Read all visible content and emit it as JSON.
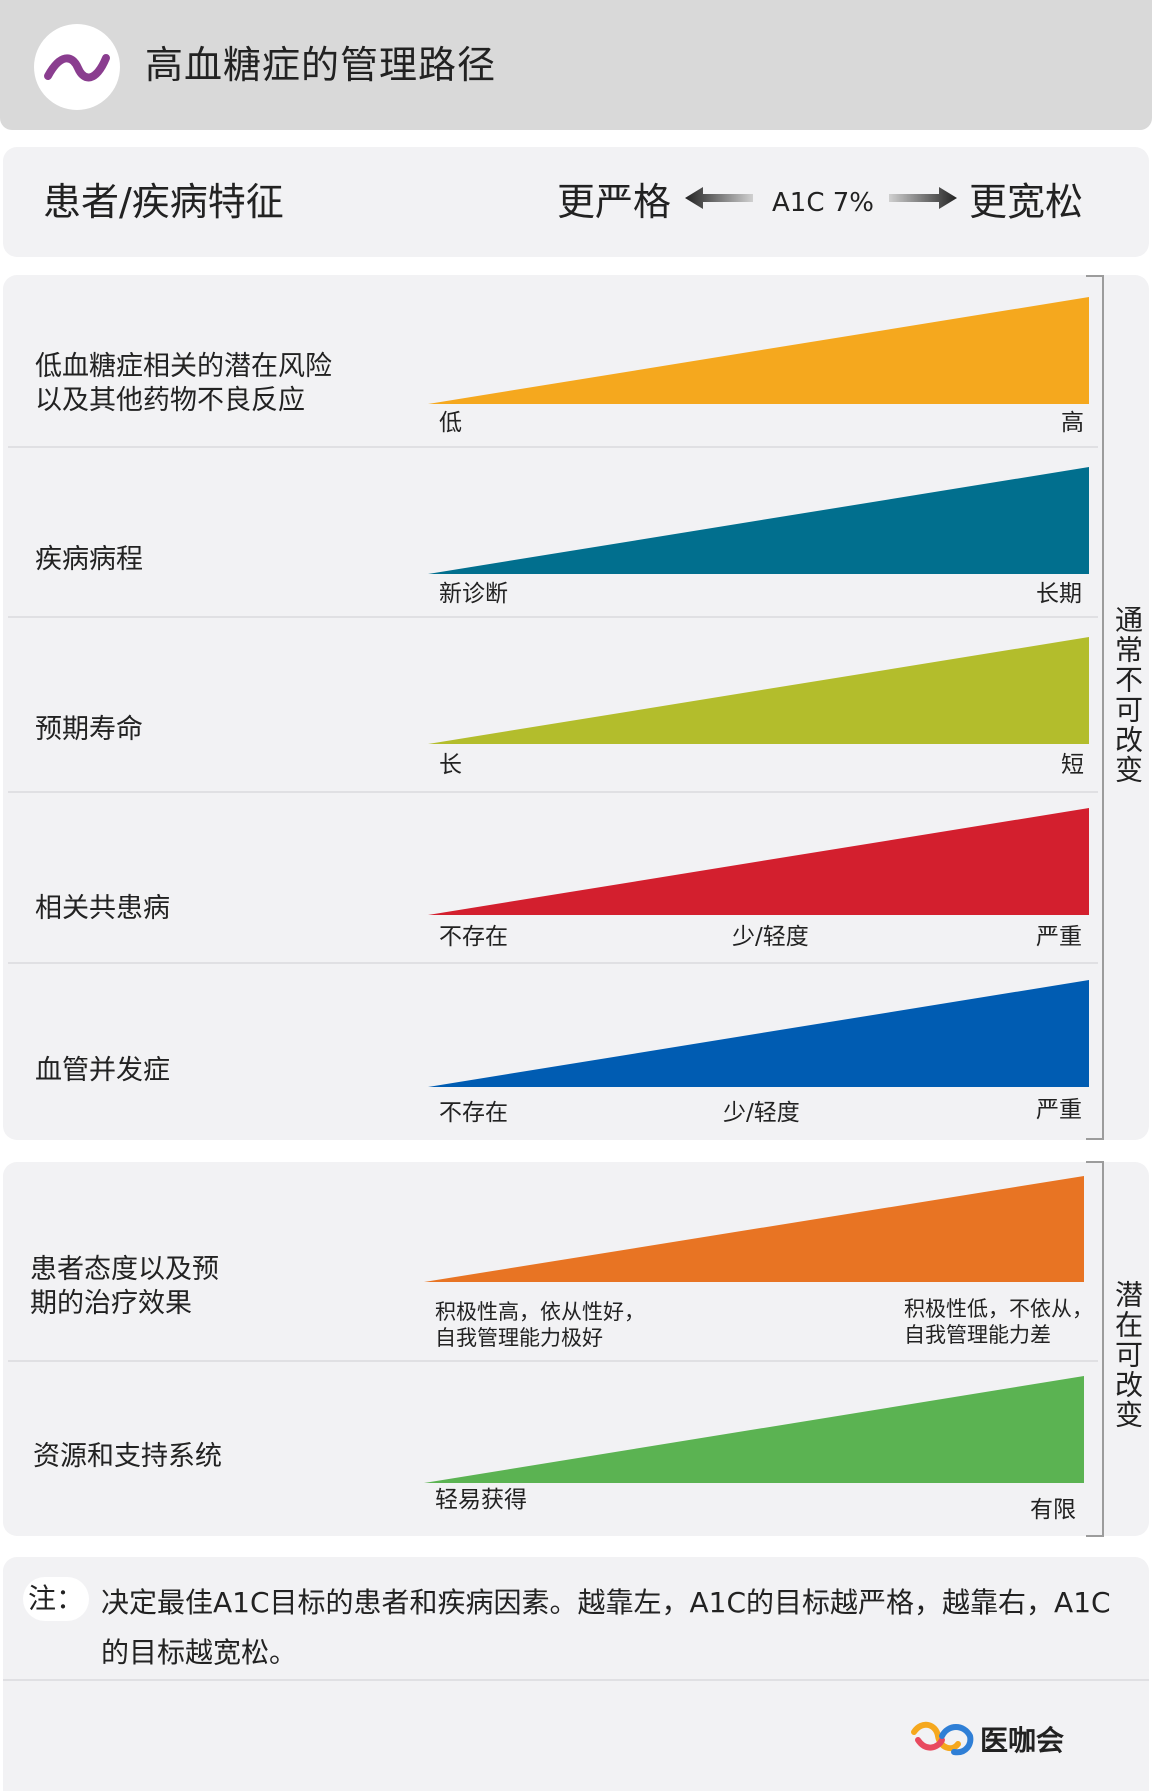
{
  "header": {
    "title": "高血糖症的管理路径",
    "logo_icon": "wave-icon"
  },
  "subheader": {
    "left_label": "患者/疾病特征",
    "stricter_label": "更严格",
    "center_label": "A1C 7%",
    "looser_label": "更宽松"
  },
  "section1": {
    "group_label": "通常不可改变",
    "rows": [
      {
        "label": "低血糖症相关的潜在风险\n以及其他药物不良反应",
        "color": "#F5A81E",
        "ticks": [
          "低",
          "",
          "高"
        ]
      },
      {
        "label": "疾病病程",
        "color": "#016F8E",
        "ticks": [
          "新诊断",
          "",
          "长期"
        ]
      },
      {
        "label": "预期寿命",
        "color": "#B3BD2C",
        "ticks": [
          "长",
          "",
          "短"
        ]
      },
      {
        "label": "相关共患病",
        "color": "#D31F2E",
        "ticks": [
          "不存在",
          "少/轻度",
          "严重"
        ]
      },
      {
        "label": "血管并发症",
        "color": "#005CB2",
        "ticks": [
          "不存在",
          "少/轻度",
          "严重"
        ]
      }
    ]
  },
  "section2": {
    "group_label": "潜在可改变",
    "rows": [
      {
        "label": "患者态度以及预\n期的治疗效果",
        "color": "#E87423",
        "ticks": [
          "积极性高，依从性好，\n自我管理能力极好",
          "",
          "积极性低，不依从，\n自我管理能力差"
        ]
      },
      {
        "label": "资源和支持系统",
        "color": "#5BB352",
        "ticks": [
          "轻易获得",
          "",
          "有限"
        ]
      }
    ]
  },
  "note": {
    "prefix": "注：",
    "text": "决定最佳A1C目标的患者和疾病因素。越靠左，A1C的目标越严格，越靠右，A1C的目标越宽松。"
  },
  "brand": {
    "name": "医咖会",
    "logo_icon": "chain-link-icon"
  }
}
